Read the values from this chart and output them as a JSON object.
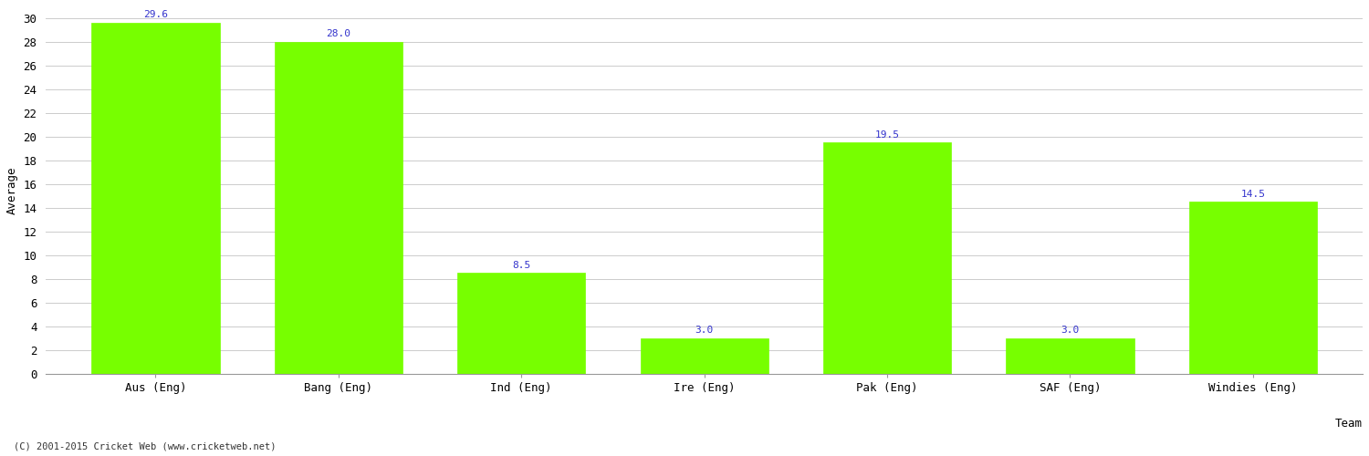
{
  "categories": [
    "Aus (Eng)",
    "Bang (Eng)",
    "Ind (Eng)",
    "Ire (Eng)",
    "Pak (Eng)",
    "SAF (Eng)",
    "Windies (Eng)"
  ],
  "values": [
    29.6,
    28.0,
    8.5,
    3.0,
    19.5,
    3.0,
    14.5
  ],
  "bar_color": "#77ff00",
  "bar_edge_color": "#77ff00",
  "label_color": "#3333cc",
  "xlabel": "Team",
  "ylabel": "Average",
  "ylim": [
    0,
    31
  ],
  "yticks": [
    0,
    2,
    4,
    6,
    8,
    10,
    12,
    14,
    16,
    18,
    20,
    22,
    24,
    26,
    28,
    30
  ],
  "grid_color": "#cccccc",
  "background_color": "#ffffff",
  "footnote": "(C) 2001-2015 Cricket Web (www.cricketweb.net)",
  "label_fontsize": 8,
  "axis_label_fontsize": 9,
  "tick_fontsize": 9
}
